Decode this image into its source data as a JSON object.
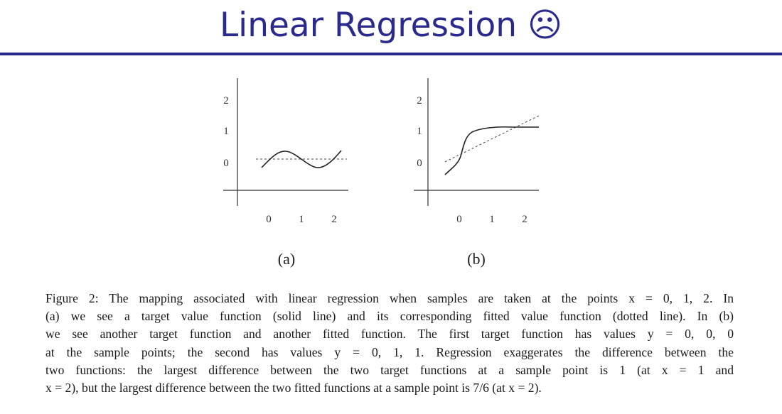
{
  "slide": {
    "title": "Linear Regression ☹"
  },
  "figure": {
    "panel_a": {
      "label": "(a)",
      "y_ticks": [
        "2",
        "1",
        "0"
      ],
      "x_ticks": [
        "0",
        "1",
        "2"
      ]
    },
    "panel_b": {
      "label": "(b)",
      "y_ticks": [
        "2",
        "1",
        "0"
      ],
      "x_ticks": [
        "0",
        "1",
        "2"
      ]
    }
  },
  "caption": {
    "lines": [
      "Figure 2: The mapping associated with linear regression when samples are taken at the points x = 0, 1, 2. In",
      "(a) we see a target value function (solid line) and its corresponding fitted value function (dotted line). In (b)",
      "we see another target function and another fitted function. The first target function has values y = 0, 0, 0",
      "at the sample points; the second has values y = 0, 1, 1. Regression exaggerates the difference between the",
      "two functions: the largest difference between the two target functions at a sample point is 1 (at x = 1 and",
      "x = 2), but the largest difference between the two fitted functions at a sample point is 7/6 (at x = 2)."
    ]
  }
}
